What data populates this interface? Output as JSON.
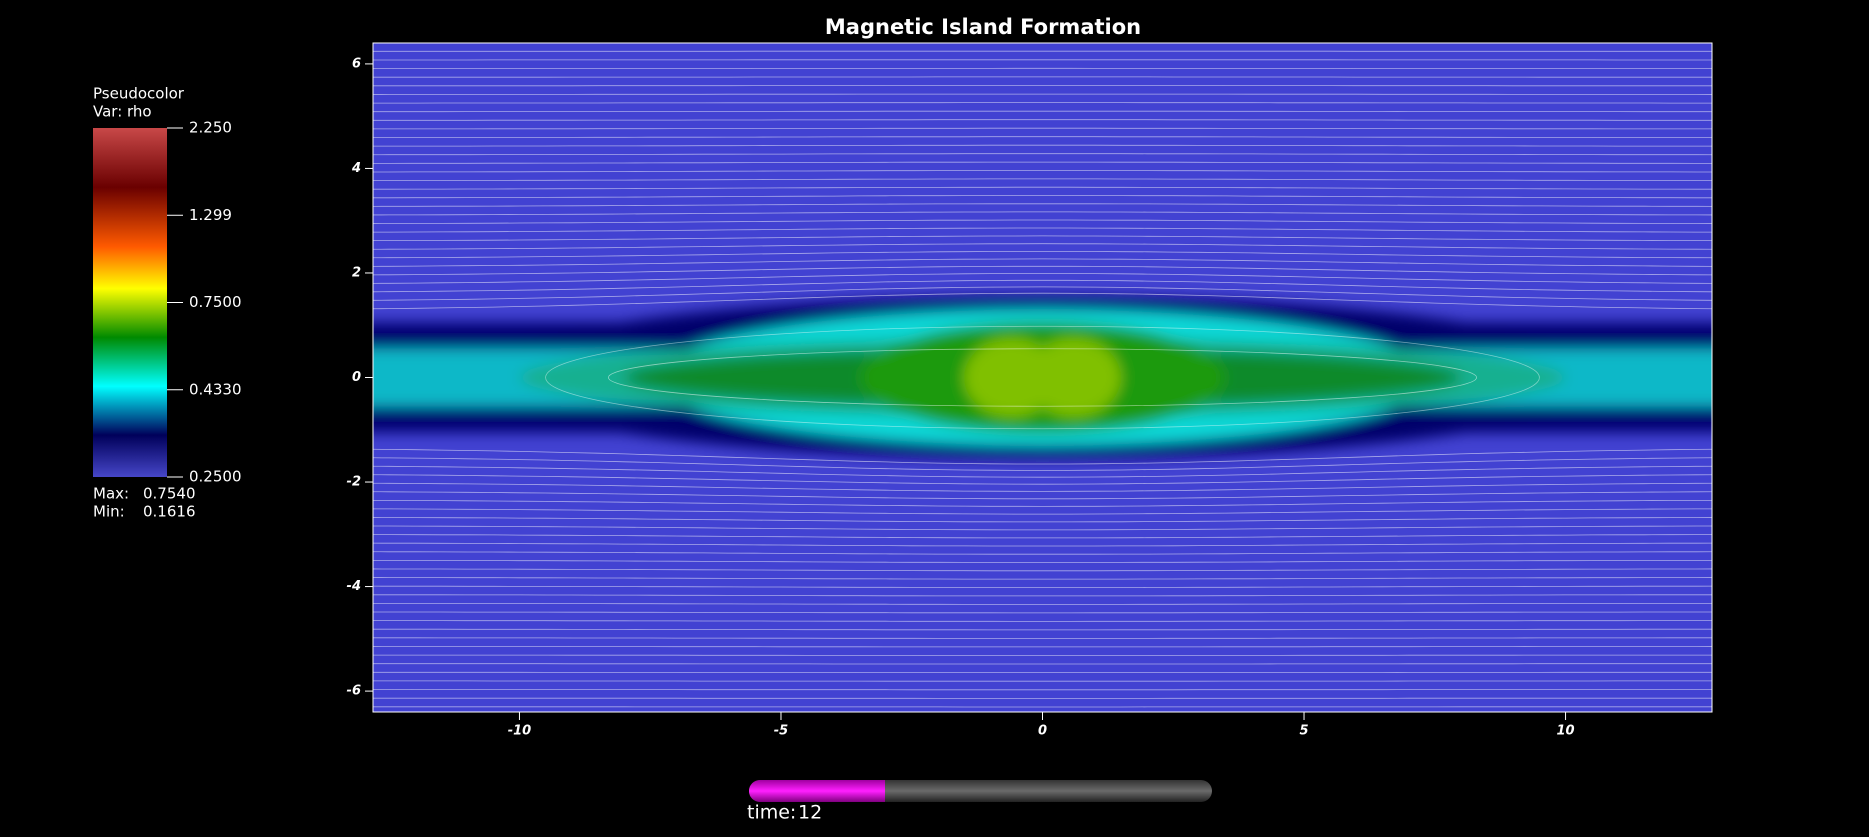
{
  "chart_data": {
    "type": "pseudocolor",
    "title": "Magnetic Island Formation",
    "xlim": [
      -12.8,
      12.8
    ],
    "ylim": [
      -6.4,
      6.4
    ],
    "xticks": [
      -10,
      -5,
      0,
      5,
      10
    ],
    "yticks": [
      -6,
      -4,
      -2,
      0,
      2,
      4,
      6
    ],
    "colorbar": {
      "title": "Pseudocolor",
      "var_label": "Var: rho",
      "log": true,
      "range": [
        0.25,
        2.25
      ],
      "ticks": [
        {
          "value": 2.25,
          "label": "2.250"
        },
        {
          "value": 1.299,
          "label": "1.299"
        },
        {
          "value": 0.75,
          "label": "0.7500"
        },
        {
          "value": 0.433,
          "label": "0.4330"
        },
        {
          "value": 0.25,
          "label": "0.2500"
        }
      ],
      "max_label": "Max:",
      "max": {
        "value": 0.754,
        "label": "0.7540"
      },
      "min_label": "Min:",
      "min": {
        "value": 0.1616,
        "label": "0.1616"
      }
    },
    "time_label": "time:",
    "time": 12
  }
}
